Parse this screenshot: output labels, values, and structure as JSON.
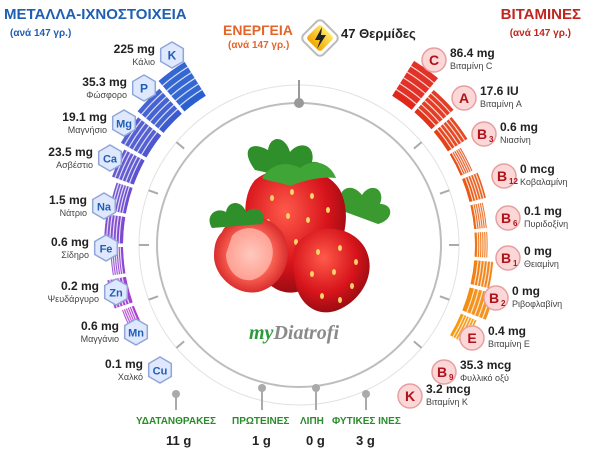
{
  "minerals": {
    "title": "ΜΕΤΑΛΛΑ-ΙΧΝΟΣΤΟΙΧΕΙΑ",
    "subtitle": "(ανά 147 γρ.)",
    "items": [
      {
        "symbol": "K",
        "amount": "225 mg",
        "name": "Κάλιο",
        "fill": 0.95
      },
      {
        "symbol": "P",
        "amount": "35.3 mg",
        "name": "Φώσφορο",
        "fill": 0.8
      },
      {
        "symbol": "Mg",
        "amount": "19.1 mg",
        "name": "Μαγνήσιο",
        "fill": 0.7
      },
      {
        "symbol": "Ca",
        "amount": "23.5 mg",
        "name": "Ασβέστιο",
        "fill": 0.55
      },
      {
        "symbol": "Na",
        "amount": "1.5 mg",
        "name": "Νάτριο",
        "fill": 0.4
      },
      {
        "symbol": "Fe",
        "amount": "0.6 mg",
        "name": "Σίδηρο",
        "fill": 0.45
      },
      {
        "symbol": "Zn",
        "amount": "0.2 mg",
        "name": "Ψευδάργυρο",
        "fill": 0.3
      },
      {
        "symbol": "Mn",
        "amount": "0.6 mg",
        "name": "Μαγγάνιο",
        "fill": 0.45
      },
      {
        "symbol": "Cu",
        "amount": "0.1 mg",
        "name": "Χαλκό",
        "fill": 0.3
      }
    ]
  },
  "vitamins": {
    "title": "ΒΙΤΑΜΙΝΕΣ",
    "subtitle": "(ανά 147 γρ.)",
    "items": [
      {
        "symbol": "C",
        "sub": "",
        "amount": "86.4 mg",
        "name": "Βιταμίνη C",
        "fill": 0.98
      },
      {
        "symbol": "A",
        "sub": "",
        "amount": "17.6 IU",
        "name": "Βιταμίνη A",
        "fill": 0.7
      },
      {
        "symbol": "B",
        "sub": "3",
        "amount": "0.6 mg",
        "name": "Νιασίνη",
        "fill": 0.55
      },
      {
        "symbol": "B",
        "sub": "12",
        "amount": "0 mcg",
        "name": "Κοβαλαμίνη",
        "fill": 0.3
      },
      {
        "symbol": "B",
        "sub": "6",
        "amount": "0.1 mg",
        "name": "Πυριδοξίνη",
        "fill": 0.4
      },
      {
        "symbol": "B",
        "sub": "1",
        "amount": "0 mg",
        "name": "Θειαμίνη",
        "fill": 0.3
      },
      {
        "symbol": "B",
        "sub": "2",
        "amount": "0 mg",
        "name": "Ριβοφλαβίνη",
        "fill": 0.3
      },
      {
        "symbol": "E",
        "sub": "",
        "amount": "0.4 mg",
        "name": "Βιταμίνη E",
        "fill": 0.45
      },
      {
        "symbol": "B",
        "sub": "9",
        "amount": "35.3 mcg",
        "name": "Φυλλικό οξύ",
        "fill": 0.6
      },
      {
        "symbol": "K",
        "sub": "",
        "amount": "3.2 mcg",
        "name": "Βιταμίνη K",
        "fill": 0.4
      }
    ]
  },
  "energy": {
    "title": "ΕΝΕΡΓΕΙΑ",
    "subtitle": "(ανά 147 γρ.)",
    "value": "47 Θερμίδες",
    "icon": "lightning-icon"
  },
  "macros": [
    {
      "label": "ΥΔΑΤΑΝΘΡΑΚΕΣ",
      "value": "11 g"
    },
    {
      "label": "ΠΡΩΤΕΙΝΕΣ",
      "value": "1 g"
    },
    {
      "label": "ΛΙΠΗ",
      "value": "0 g"
    },
    {
      "label": "ΦΥΤΙΚΕΣ ΙΝΕΣ",
      "value": "3 g"
    }
  ],
  "logo": {
    "part1": "my",
    "part2": "Diatrofi"
  },
  "colors": {
    "mineral_blue": "#2a5fd0",
    "mineral_purple": "#b13ed0",
    "vitamin_red": "#e0261a",
    "vitamin_orange": "#f59a12",
    "hex_fill": "#dfe8ff",
    "circle_fill": "#fbd7d7"
  }
}
